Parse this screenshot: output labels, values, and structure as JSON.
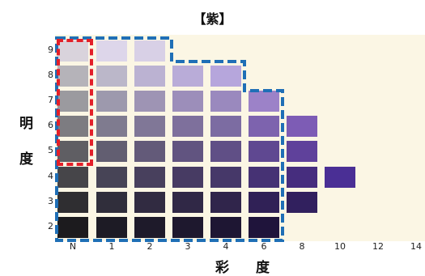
{
  "title": "【紫】",
  "axes": {
    "vertical_chars": [
      "明",
      "度"
    ],
    "horizontal_chars": [
      "彩",
      "度"
    ]
  },
  "value_ticks": [
    "9",
    "8",
    "7",
    "6",
    "5",
    "4",
    "3",
    "2"
  ],
  "chroma_ticks": [
    "N",
    "1",
    "2",
    "3",
    "4",
    "6",
    "8",
    "10",
    "12",
    "14"
  ],
  "colors": {
    "panel": "#fbf6e4",
    "blue_outline": "#1f6fb6",
    "red_outline": "#e3202a"
  },
  "swatches": [
    {
      "value": "9",
      "chroma": "N",
      "color": "#d9d3dc"
    },
    {
      "value": "9",
      "chroma": "1",
      "color": "#ddd6ea"
    },
    {
      "value": "9",
      "chroma": "2",
      "color": "#d8d0e6"
    },
    {
      "value": "8",
      "chroma": "N",
      "color": "#b5b3b9"
    },
    {
      "value": "8",
      "chroma": "1",
      "color": "#bbb7c9"
    },
    {
      "value": "8",
      "chroma": "2",
      "color": "#bbb2d2"
    },
    {
      "value": "8",
      "chroma": "3",
      "color": "#b9acd8"
    },
    {
      "value": "8",
      "chroma": "4",
      "color": "#b6a6dc"
    },
    {
      "value": "7",
      "chroma": "N",
      "color": "#9b9a9f"
    },
    {
      "value": "7",
      "chroma": "1",
      "color": "#9d99ad"
    },
    {
      "value": "7",
      "chroma": "2",
      "color": "#9e94b4"
    },
    {
      "value": "7",
      "chroma": "3",
      "color": "#9c8eba"
    },
    {
      "value": "7",
      "chroma": "4",
      "color": "#9a89be"
    },
    {
      "value": "7",
      "chroma": "6",
      "color": "#9c82c8"
    },
    {
      "value": "6",
      "chroma": "N",
      "color": "#7d7c81"
    },
    {
      "value": "6",
      "chroma": "1",
      "color": "#7f7b8f"
    },
    {
      "value": "6",
      "chroma": "2",
      "color": "#807797"
    },
    {
      "value": "6",
      "chroma": "3",
      "color": "#7e709c"
    },
    {
      "value": "6",
      "chroma": "4",
      "color": "#7c6ca2"
    },
    {
      "value": "6",
      "chroma": "6",
      "color": "#7d63ae"
    },
    {
      "value": "6",
      "chroma": "8",
      "color": "#7d5cb5"
    },
    {
      "value": "5",
      "chroma": "N",
      "color": "#5f5e63"
    },
    {
      "value": "5",
      "chroma": "1",
      "color": "#625e71"
    },
    {
      "value": "5",
      "chroma": "2",
      "color": "#635a79"
    },
    {
      "value": "5",
      "chroma": "3",
      "color": "#615480"
    },
    {
      "value": "5",
      "chroma": "4",
      "color": "#604f86"
    },
    {
      "value": "5",
      "chroma": "6",
      "color": "#5f4891"
    },
    {
      "value": "5",
      "chroma": "8",
      "color": "#5f419b"
    },
    {
      "value": "4",
      "chroma": "N",
      "color": "#464549"
    },
    {
      "value": "4",
      "chroma": "1",
      "color": "#474456"
    },
    {
      "value": "4",
      "chroma": "2",
      "color": "#48405d"
    },
    {
      "value": "4",
      "chroma": "3",
      "color": "#473b63"
    },
    {
      "value": "4",
      "chroma": "4",
      "color": "#463869"
    },
    {
      "value": "4",
      "chroma": "6",
      "color": "#463274"
    },
    {
      "value": "4",
      "chroma": "8",
      "color": "#462d7e"
    },
    {
      "value": "4",
      "chroma": "10",
      "color": "#4a2f95"
    },
    {
      "value": "3",
      "chroma": "N",
      "color": "#2f2e31"
    },
    {
      "value": "3",
      "chroma": "1",
      "color": "#302e3b"
    },
    {
      "value": "3",
      "chroma": "2",
      "color": "#312b41"
    },
    {
      "value": "3",
      "chroma": "3",
      "color": "#302846"
    },
    {
      "value": "3",
      "chroma": "4",
      "color": "#30254b"
    },
    {
      "value": "3",
      "chroma": "6",
      "color": "#302156"
    },
    {
      "value": "3",
      "chroma": "8",
      "color": "#31205e"
    },
    {
      "value": "2",
      "chroma": "N",
      "color": "#1c1b1e"
    },
    {
      "value": "2",
      "chroma": "1",
      "color": "#1d1b25"
    },
    {
      "value": "2",
      "chroma": "2",
      "color": "#1e1a2a"
    },
    {
      "value": "2",
      "chroma": "3",
      "color": "#1e182e"
    },
    {
      "value": "2",
      "chroma": "4",
      "color": "#1e1633"
    },
    {
      "value": "2",
      "chroma": "6",
      "color": "#1f143b"
    }
  ]
}
